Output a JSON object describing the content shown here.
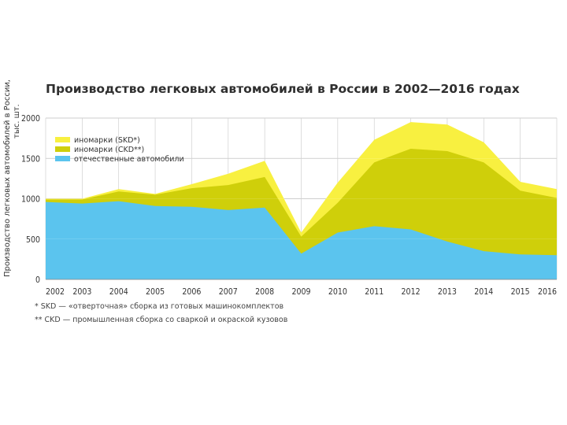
{
  "chart_data": {
    "type": "area",
    "title": "Производство легковых автомобилей в России в 2002—2016 годах",
    "ylabel_line1": "Производство легковых автомобилей в России,",
    "ylabel_line2": "тыс. шт.",
    "xlabel": "",
    "ylim": [
      0,
      2000
    ],
    "yticks": [
      0,
      500,
      1000,
      1500,
      2000
    ],
    "x": [
      "2002",
      "2003",
      "2004",
      "2005",
      "2006",
      "2007",
      "2008",
      "2009",
      "2010",
      "2011",
      "2012",
      "2013",
      "2014",
      "2015",
      "2016"
    ],
    "stacking": "cumulative",
    "grid": true,
    "legend_position": "top-left",
    "series": [
      {
        "name": "отечественные автомобили",
        "color": "#5bc4ee",
        "values": [
          960,
          940,
          970,
          910,
          900,
          860,
          890,
          320,
          580,
          660,
          620,
          470,
          350,
          310,
          300
        ]
      },
      {
        "name": "иномарки (CKD**)",
        "color": "#cfcf0a",
        "values": [
          990,
          990,
          1090,
          1050,
          1130,
          1170,
          1270,
          530,
          950,
          1450,
          1620,
          1590,
          1450,
          1100,
          1010
        ]
      },
      {
        "name": "иномарки (SKD*)",
        "color": "#f8f040",
        "values": [
          1000,
          1000,
          1120,
          1060,
          1180,
          1310,
          1470,
          580,
          1200,
          1730,
          1950,
          1920,
          1700,
          1210,
          1120
        ]
      }
    ],
    "legend_order": [
      "иномарки (SKD*)",
      "иномарки (CKD**)",
      "отечественные автомобили"
    ]
  },
  "footnotes": [
    "* SKD — «отверточная» сборка из готовых машинокомплектов",
    "** CKD — промышленная сборка со сваркой и окраской кузовов"
  ]
}
